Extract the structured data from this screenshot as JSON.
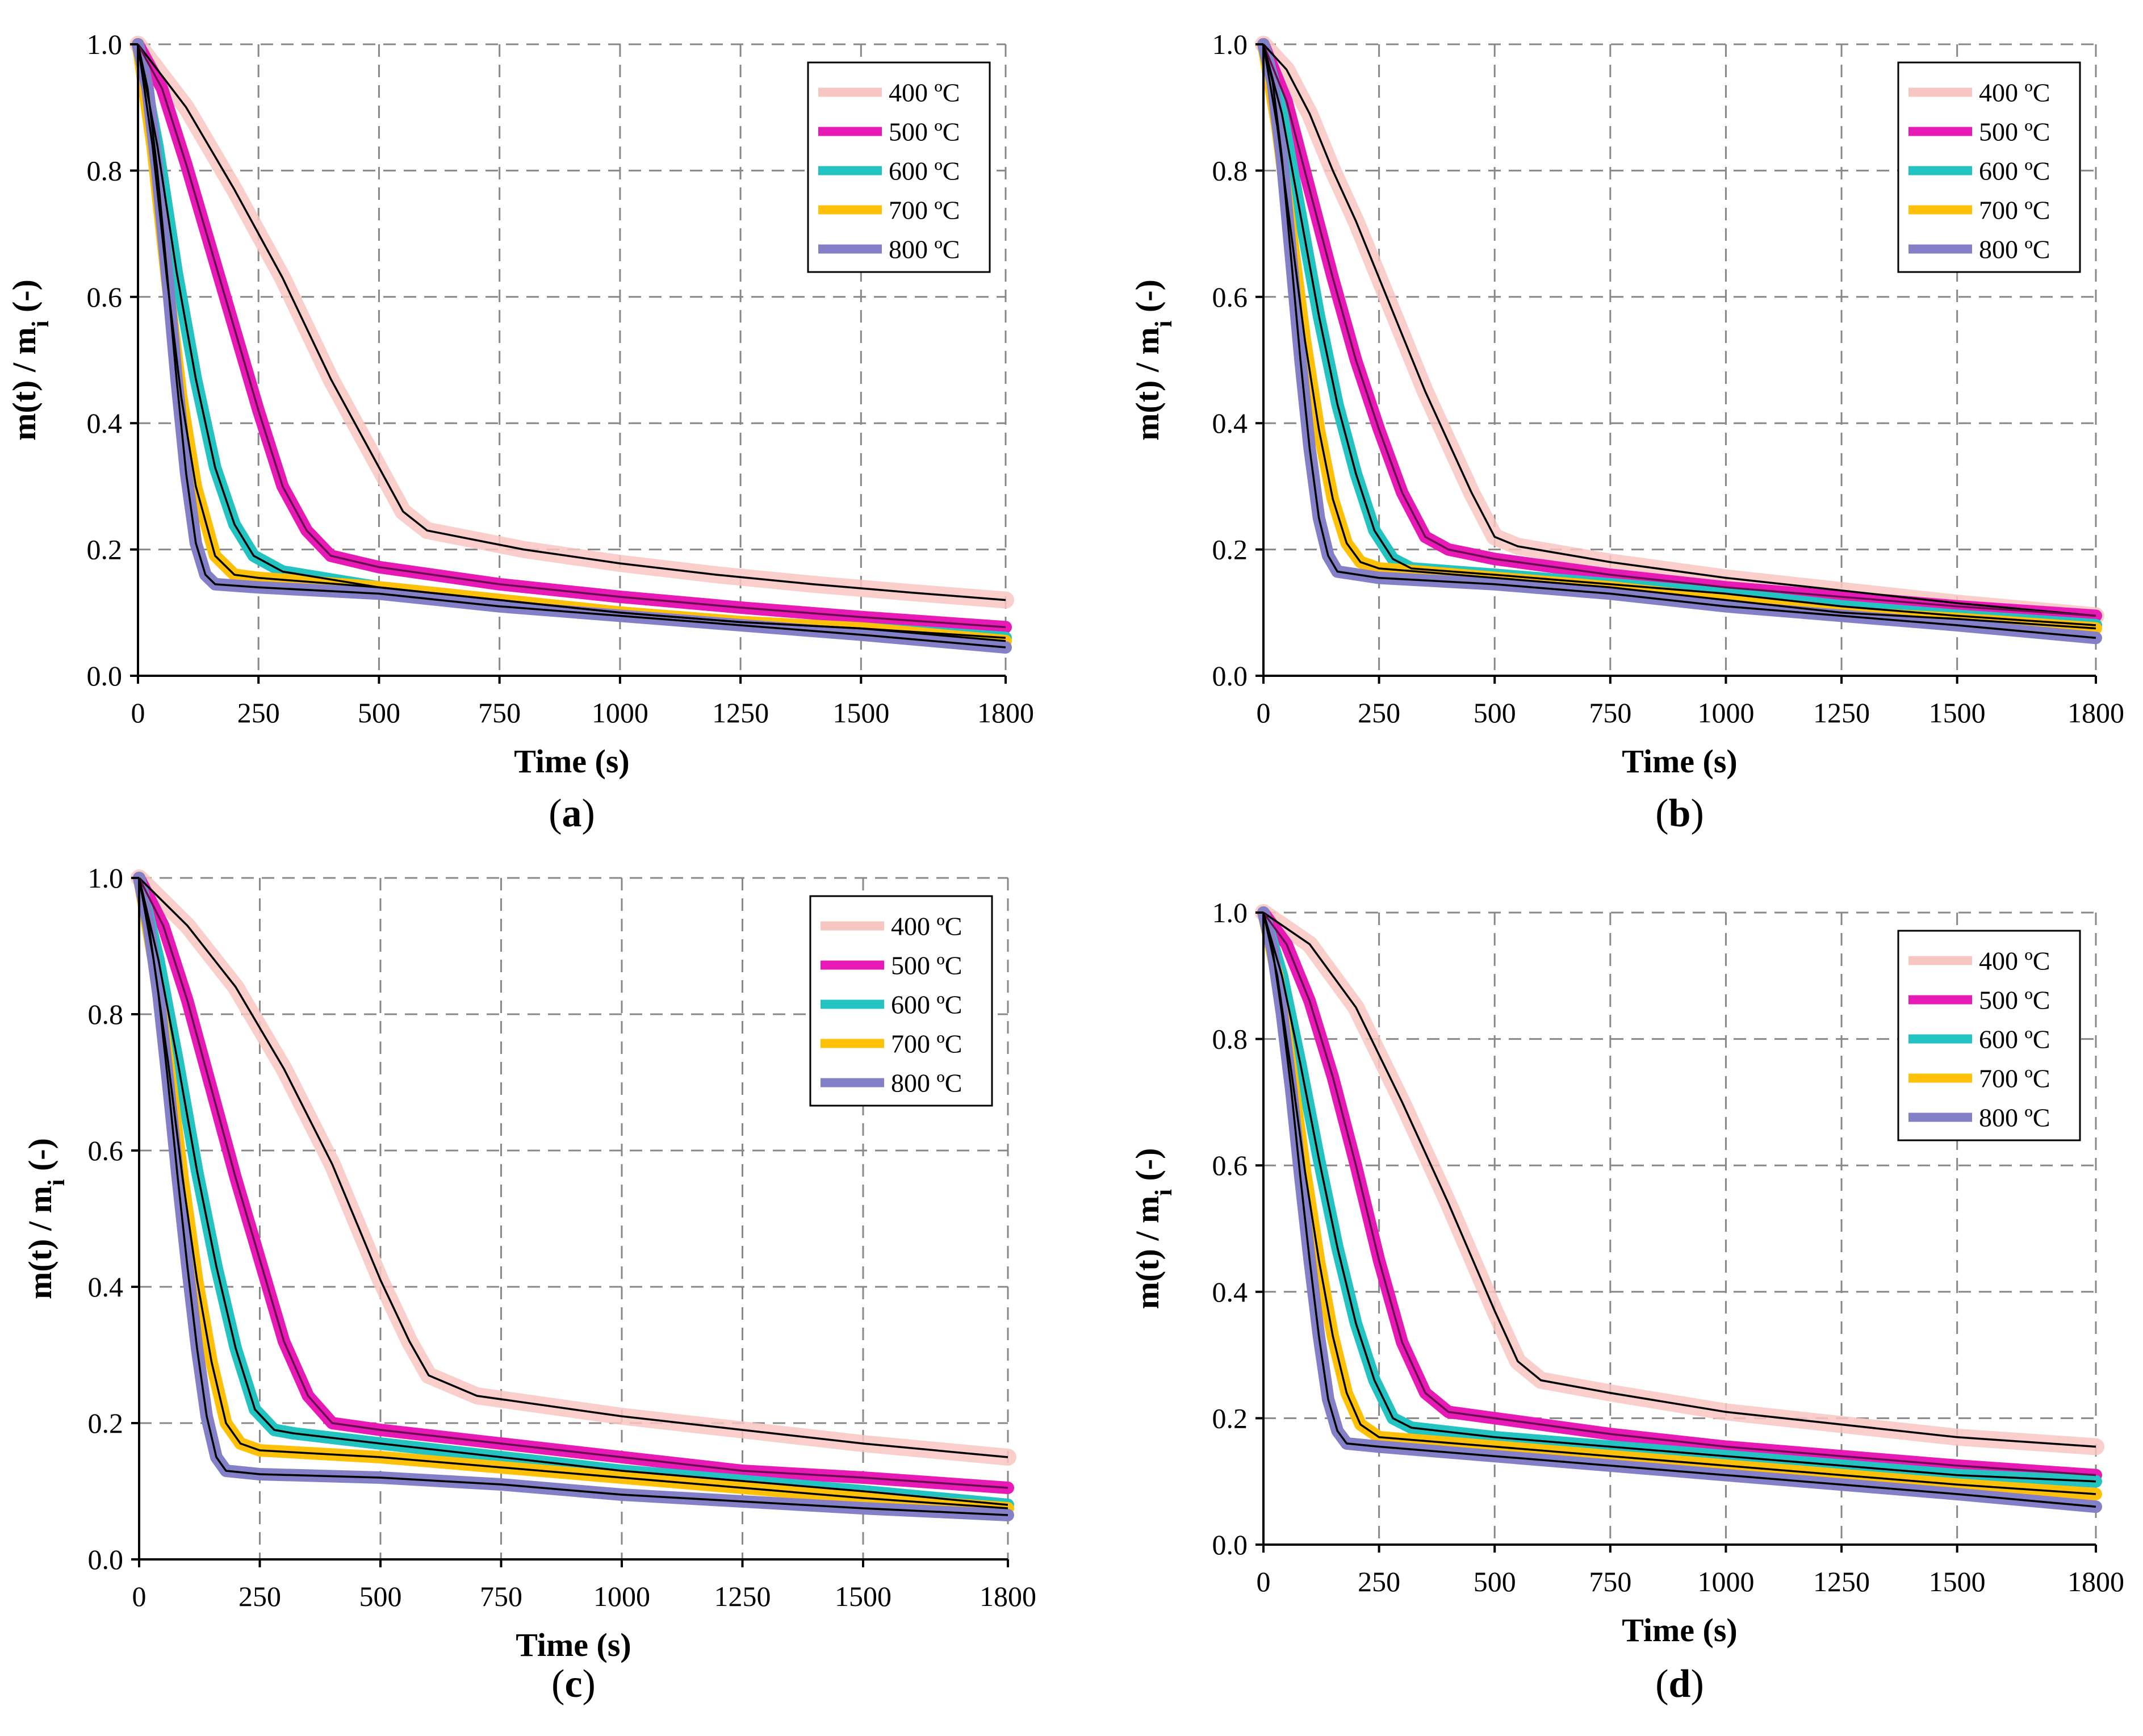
{
  "figure": {
    "series_styles": [
      {
        "name": "400 ºC",
        "color": "#f8c6c2",
        "fit_color": "#000000"
      },
      {
        "name": "500 ºC",
        "color": "#e81ab6",
        "fit_color": "#6a0d50"
      },
      {
        "name": "600 ºC",
        "color": "#22c3c0",
        "fit_color": "#000000"
      },
      {
        "name": "700 ºC",
        "color": "#ffc107",
        "fit_color": "#000000"
      },
      {
        "name": "800 ºC",
        "color": "#8480c8",
        "fit_color": "#000000"
      }
    ]
  },
  "chart_data": [
    {
      "id": "a",
      "type": "line",
      "panel_label": "a",
      "xlabel": "Time (s)",
      "ylabel": "m(t) / m",
      "ylabel_sub": "i",
      "ylabel_suffix": " (-)",
      "xlim": [
        0,
        1800
      ],
      "ylim": [
        0,
        1
      ],
      "xticks": [
        0,
        250,
        500,
        750,
        1000,
        1250,
        1500,
        1800
      ],
      "yticks": [
        0.0,
        0.2,
        0.4,
        0.6,
        0.8,
        1.0
      ],
      "ytick_labels": [
        "0.0",
        "0.2",
        "0.4",
        "0.6",
        "0.8",
        "1.0"
      ],
      "grid": true,
      "legend": "top-right",
      "series": [
        {
          "name": "400 ºC",
          "x": [
            0,
            100,
            200,
            300,
            400,
            500,
            550,
            600,
            800,
            1000,
            1200,
            1400,
            1600,
            1800
          ],
          "values": [
            1.0,
            0.9,
            0.77,
            0.63,
            0.47,
            0.33,
            0.26,
            0.23,
            0.2,
            0.178,
            0.16,
            0.145,
            0.132,
            0.12
          ]
        },
        {
          "name": "500 ºC",
          "x": [
            0,
            50,
            100,
            150,
            200,
            250,
            300,
            350,
            400,
            500,
            750,
            1000,
            1250,
            1500,
            1800
          ],
          "values": [
            1.0,
            0.93,
            0.81,
            0.68,
            0.55,
            0.42,
            0.3,
            0.23,
            0.19,
            0.172,
            0.145,
            0.125,
            0.108,
            0.093,
            0.077
          ]
        },
        {
          "name": "600 ºC",
          "x": [
            0,
            40,
            80,
            120,
            160,
            200,
            240,
            300,
            500,
            750,
            1000,
            1250,
            1500,
            1800
          ],
          "values": [
            1.0,
            0.84,
            0.64,
            0.47,
            0.33,
            0.24,
            0.19,
            0.165,
            0.14,
            0.12,
            0.1,
            0.085,
            0.075,
            0.06
          ]
        },
        {
          "name": "700 ºC",
          "x": [
            0,
            30,
            60,
            90,
            120,
            160,
            200,
            250,
            500,
            750,
            1000,
            1250,
            1500,
            1800
          ],
          "values": [
            1.0,
            0.84,
            0.63,
            0.44,
            0.3,
            0.19,
            0.16,
            0.155,
            0.14,
            0.12,
            0.1,
            0.085,
            0.075,
            0.055
          ]
        },
        {
          "name": "800 ºC",
          "x": [
            0,
            20,
            40,
            60,
            80,
            100,
            120,
            140,
            160,
            250,
            500,
            750,
            1000,
            1250,
            1500,
            1800
          ],
          "values": [
            1.0,
            0.93,
            0.8,
            0.64,
            0.47,
            0.32,
            0.21,
            0.16,
            0.145,
            0.14,
            0.13,
            0.11,
            0.095,
            0.08,
            0.065,
            0.045
          ]
        }
      ]
    },
    {
      "id": "b",
      "type": "line",
      "panel_label": "b",
      "xlabel": "Time (s)",
      "ylabel": "m(t) / m",
      "ylabel_sub": "i",
      "ylabel_suffix": " (-)",
      "xlim": [
        0,
        1800
      ],
      "ylim": [
        0,
        1
      ],
      "xticks": [
        0,
        250,
        500,
        750,
        1000,
        1250,
        1500,
        1800
      ],
      "yticks": [
        0.0,
        0.2,
        0.4,
        0.6,
        0.8,
        1.0
      ],
      "ytick_labels": [
        "0.0",
        "0.2",
        "0.4",
        "0.6",
        "0.8",
        "1.0"
      ],
      "grid": true,
      "legend": "top-right",
      "series": [
        {
          "name": "400 ºC",
          "x": [
            0,
            50,
            100,
            150,
            200,
            250,
            300,
            350,
            400,
            450,
            500,
            550,
            750,
            1000,
            1250,
            1500,
            1800
          ],
          "values": [
            1.0,
            0.96,
            0.89,
            0.8,
            0.72,
            0.63,
            0.54,
            0.45,
            0.37,
            0.29,
            0.22,
            0.205,
            0.18,
            0.155,
            0.135,
            0.115,
            0.095
          ]
        },
        {
          "name": "500 ºC",
          "x": [
            0,
            50,
            100,
            150,
            200,
            250,
            300,
            350,
            400,
            500,
            750,
            1000,
            1250,
            1500,
            1800
          ],
          "values": [
            1.0,
            0.91,
            0.77,
            0.63,
            0.5,
            0.39,
            0.29,
            0.22,
            0.2,
            0.185,
            0.16,
            0.14,
            0.125,
            0.11,
            0.095
          ]
        },
        {
          "name": "600 ºC",
          "x": [
            0,
            40,
            80,
            120,
            160,
            200,
            240,
            280,
            320,
            500,
            750,
            1000,
            1250,
            1500,
            1800
          ],
          "values": [
            1.0,
            0.89,
            0.73,
            0.57,
            0.43,
            0.32,
            0.23,
            0.185,
            0.17,
            0.16,
            0.145,
            0.13,
            0.11,
            0.095,
            0.08
          ]
        },
        {
          "name": "700 ºC",
          "x": [
            0,
            30,
            60,
            90,
            120,
            150,
            180,
            210,
            250,
            500,
            750,
            1000,
            1250,
            1500,
            1800
          ],
          "values": [
            1.0,
            0.87,
            0.7,
            0.53,
            0.39,
            0.28,
            0.21,
            0.18,
            0.17,
            0.155,
            0.14,
            0.12,
            0.1,
            0.09,
            0.075
          ]
        },
        {
          "name": "800 ºC",
          "x": [
            0,
            20,
            40,
            60,
            80,
            100,
            120,
            140,
            160,
            250,
            500,
            750,
            1000,
            1250,
            1500,
            1800
          ],
          "values": [
            1.0,
            0.94,
            0.82,
            0.66,
            0.5,
            0.36,
            0.25,
            0.19,
            0.165,
            0.155,
            0.145,
            0.13,
            0.11,
            0.095,
            0.08,
            0.06
          ]
        }
      ]
    },
    {
      "id": "c",
      "type": "line",
      "panel_label": "c",
      "xlabel": "Time (s)",
      "ylabel": "m(t)  /  m",
      "ylabel_sub": "i",
      "ylabel_suffix": "   (-)",
      "xlim": [
        0,
        1800
      ],
      "ylim": [
        0,
        1
      ],
      "xticks": [
        0,
        250,
        500,
        750,
        1000,
        1250,
        1500,
        1800
      ],
      "yticks": [
        0.0,
        0.2,
        0.4,
        0.6,
        0.8,
        1.0
      ],
      "ytick_labels": [
        "0.0",
        "0.2",
        "0.4",
        "0.6",
        "0.8",
        "1.0"
      ],
      "grid": true,
      "legend": "top-right",
      "series": [
        {
          "name": "400 ºC",
          "x": [
            0,
            100,
            200,
            300,
            400,
            500,
            560,
            600,
            700,
            1000,
            1250,
            1500,
            1800
          ],
          "values": [
            1.0,
            0.93,
            0.84,
            0.72,
            0.58,
            0.41,
            0.32,
            0.27,
            0.24,
            0.21,
            0.19,
            0.17,
            0.15
          ]
        },
        {
          "name": "500 ºC",
          "x": [
            0,
            50,
            100,
            150,
            200,
            250,
            300,
            350,
            400,
            500,
            750,
            1000,
            1250,
            1500,
            1800
          ],
          "values": [
            1.0,
            0.93,
            0.82,
            0.69,
            0.56,
            0.44,
            0.32,
            0.24,
            0.2,
            0.19,
            0.17,
            0.15,
            0.13,
            0.12,
            0.105
          ]
        },
        {
          "name": "600 ºC",
          "x": [
            0,
            40,
            80,
            120,
            160,
            200,
            240,
            280,
            320,
            500,
            750,
            1000,
            1250,
            1500,
            1800
          ],
          "values": [
            1.0,
            0.88,
            0.73,
            0.57,
            0.43,
            0.31,
            0.22,
            0.19,
            0.185,
            0.17,
            0.15,
            0.13,
            0.115,
            0.1,
            0.08
          ]
        },
        {
          "name": "700 ºC",
          "x": [
            0,
            30,
            60,
            90,
            120,
            150,
            180,
            210,
            250,
            500,
            750,
            1000,
            1250,
            1500,
            1800
          ],
          "values": [
            1.0,
            0.88,
            0.73,
            0.56,
            0.41,
            0.29,
            0.2,
            0.17,
            0.16,
            0.15,
            0.135,
            0.12,
            0.105,
            0.09,
            0.075
          ]
        },
        {
          "name": "800 ºC",
          "x": [
            0,
            20,
            40,
            60,
            80,
            100,
            120,
            140,
            160,
            180,
            250,
            500,
            750,
            1000,
            1250,
            1500,
            1800
          ],
          "values": [
            1.0,
            0.93,
            0.83,
            0.7,
            0.56,
            0.43,
            0.31,
            0.21,
            0.15,
            0.13,
            0.125,
            0.12,
            0.11,
            0.095,
            0.085,
            0.075,
            0.065
          ]
        }
      ]
    },
    {
      "id": "d",
      "type": "line",
      "panel_label": "d",
      "xlabel": "Time (s)",
      "ylabel": "m(t) / m",
      "ylabel_sub": "i",
      "ylabel_suffix": " (-)",
      "xlim": [
        0,
        1800
      ],
      "ylim": [
        0,
        1
      ],
      "xticks": [
        0,
        250,
        500,
        750,
        1000,
        1250,
        1500,
        1800
      ],
      "yticks": [
        0.0,
        0.2,
        0.4,
        0.6,
        0.8,
        1.0
      ],
      "ytick_labels": [
        "0.0",
        "0.2",
        "0.4",
        "0.6",
        "0.8",
        "1.0"
      ],
      "grid": true,
      "legend": "top-right",
      "series": [
        {
          "name": "400 ºC",
          "x": [
            0,
            100,
            200,
            300,
            400,
            500,
            550,
            600,
            750,
            1000,
            1250,
            1500,
            1800
          ],
          "values": [
            1.0,
            0.95,
            0.85,
            0.7,
            0.54,
            0.37,
            0.29,
            0.26,
            0.24,
            0.21,
            0.19,
            0.17,
            0.155
          ]
        },
        {
          "name": "500 ºC",
          "x": [
            0,
            50,
            100,
            150,
            200,
            250,
            300,
            350,
            400,
            500,
            750,
            1000,
            1250,
            1500,
            1800
          ],
          "values": [
            1.0,
            0.95,
            0.86,
            0.74,
            0.6,
            0.45,
            0.32,
            0.24,
            0.21,
            0.2,
            0.175,
            0.155,
            0.14,
            0.125,
            0.11
          ]
        },
        {
          "name": "600 ºC",
          "x": [
            0,
            40,
            80,
            120,
            160,
            200,
            240,
            280,
            320,
            500,
            750,
            1000,
            1250,
            1500,
            1800
          ],
          "values": [
            1.0,
            0.9,
            0.76,
            0.61,
            0.47,
            0.35,
            0.26,
            0.2,
            0.185,
            0.17,
            0.155,
            0.14,
            0.125,
            0.11,
            0.1
          ]
        },
        {
          "name": "700 ºC",
          "x": [
            0,
            30,
            60,
            90,
            120,
            150,
            180,
            210,
            250,
            500,
            750,
            1000,
            1250,
            1500,
            1800
          ],
          "values": [
            1.0,
            0.9,
            0.75,
            0.59,
            0.45,
            0.33,
            0.24,
            0.19,
            0.17,
            0.155,
            0.14,
            0.125,
            0.11,
            0.095,
            0.08
          ]
        },
        {
          "name": "800 ºC",
          "x": [
            0,
            20,
            40,
            60,
            80,
            100,
            120,
            140,
            160,
            180,
            250,
            500,
            750,
            1000,
            1250,
            1500,
            1800
          ],
          "values": [
            1.0,
            0.94,
            0.84,
            0.72,
            0.58,
            0.45,
            0.33,
            0.23,
            0.18,
            0.16,
            0.155,
            0.14,
            0.125,
            0.11,
            0.095,
            0.08,
            0.06
          ]
        }
      ]
    }
  ]
}
